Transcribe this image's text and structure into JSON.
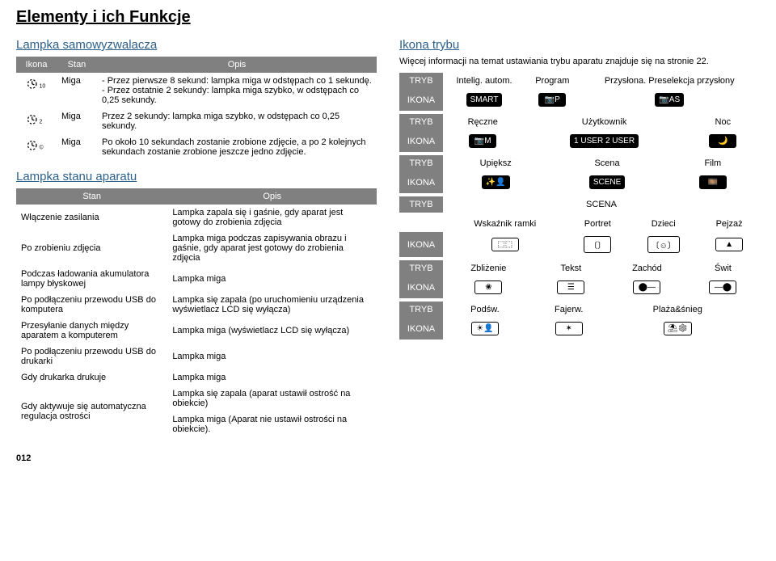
{
  "page": {
    "title": "Elementy i ich Funkcje",
    "pagenum": "012"
  },
  "left": {
    "selftimer": {
      "title": "Lampka samowyzwalacza",
      "headers": {
        "icon": "Ikona",
        "state": "Stan",
        "desc": "Opis"
      },
      "rows": [
        {
          "sub": "10",
          "state": "Miga",
          "desc": "- Przez pierwsze 8 sekund: lampka miga w odstępach co 1 sekundę.\n- Przez ostatnie 2 sekundy: lampka miga szybko, w odstępach co 0,25 sekundy."
        },
        {
          "sub": "2",
          "state": "Miga",
          "desc": "Przez 2 sekundy: lampka miga szybko, w odstępach co 0,25 sekundy."
        },
        {
          "sub": "©",
          "state": "Miga",
          "desc": "Po około 10 sekundach zostanie zrobione zdjęcie, a po 2 kolejnych sekundach zostanie zrobione jeszcze jedno zdjęcie."
        }
      ]
    },
    "status": {
      "title": "Lampka stanu aparatu",
      "headers": {
        "state": "Stan",
        "desc": "Opis"
      },
      "rows": [
        {
          "s": "Włączenie zasilania",
          "d": "Lampka zapala się i gaśnie, gdy aparat jest gotowy do zrobienia zdjęcia"
        },
        {
          "s": "Po zrobieniu zdjęcia",
          "d": "Lampka miga podczas zapisywania obrazu i gaśnie, gdy aparat jest gotowy do zrobienia zdjęcia"
        },
        {
          "s": "Podczas ładowania akumulatora lampy błyskowej",
          "d": "Lampka miga"
        },
        {
          "s": "Po podłączeniu przewodu USB do komputera",
          "d": "Lampka się zapala (po uruchomieniu urządzenia wyświetlacz LCD się wyłącza)"
        },
        {
          "s": "Przesyłanie danych między aparatem a komputerem",
          "d": "Lampka miga (wyświetlacz LCD się wyłącza)"
        },
        {
          "s": "Po podłączeniu przewodu USB do drukarki",
          "d": "Lampka miga"
        },
        {
          "s": "Gdy drukarka drukuje",
          "d": "Lampka miga"
        },
        {
          "s": "Gdy aktywuje się automatyczna regulacja ostrości",
          "d": "Lampka się zapala (aparat ustawił ostrość na obiekcie)\nLampka miga (Aparat nie ustawił ostrości na obiekcie)."
        }
      ]
    }
  },
  "right": {
    "title": "Ikona trybu",
    "note": "Więcej informacji na temat ustawiania trybu aparatu znajduje się na stronie 22.",
    "labels": {
      "tryb": "TRYB",
      "ikona": "IKONA",
      "scena_header": "SCENA"
    },
    "blocks": [
      {
        "tryb": [
          "Intelig. autom.",
          "Program",
          "Przysłona. Preselekcja przysłony"
        ],
        "ikona_style": "solid",
        "ikona": [
          "SMART",
          "📷P",
          "📷AS"
        ]
      },
      {
        "tryb": [
          "Ręczne",
          "Użytkownik",
          "Noc"
        ],
        "ikona_style": "solid",
        "ikona": [
          "📷M",
          "1 USER  2 USER",
          "🌙"
        ]
      },
      {
        "tryb": [
          "Upiększ",
          "Scena",
          "Film"
        ],
        "ikona_style": "solid",
        "ikona": [
          "✨👤",
          "SCENE",
          "🎞️"
        ]
      }
    ],
    "scena_rows": [
      {
        "tryb": [
          "Wskaźnik ramki",
          "Portret",
          "Dzieci",
          "Pejzaż"
        ],
        "ikona": [
          "⬚⬚",
          "〔〕",
          "〔☺〕",
          "▲"
        ]
      },
      {
        "tryb": [
          "Zbliżenie",
          "Tekst",
          "Zachód",
          "Świt"
        ],
        "ikona": [
          "❀",
          "☰",
          "⬤—",
          "—⬤"
        ]
      },
      {
        "tryb": [
          "Podśw.",
          "Fajerw.",
          "Plaża&śnieg",
          ""
        ],
        "ikona": [
          "☀👤",
          "✶",
          "⛱❄",
          ""
        ]
      }
    ]
  },
  "colors": {
    "heading": "#2b5f8a",
    "thbg": "#808080",
    "thtext": "#ffffff",
    "text": "#000000"
  }
}
